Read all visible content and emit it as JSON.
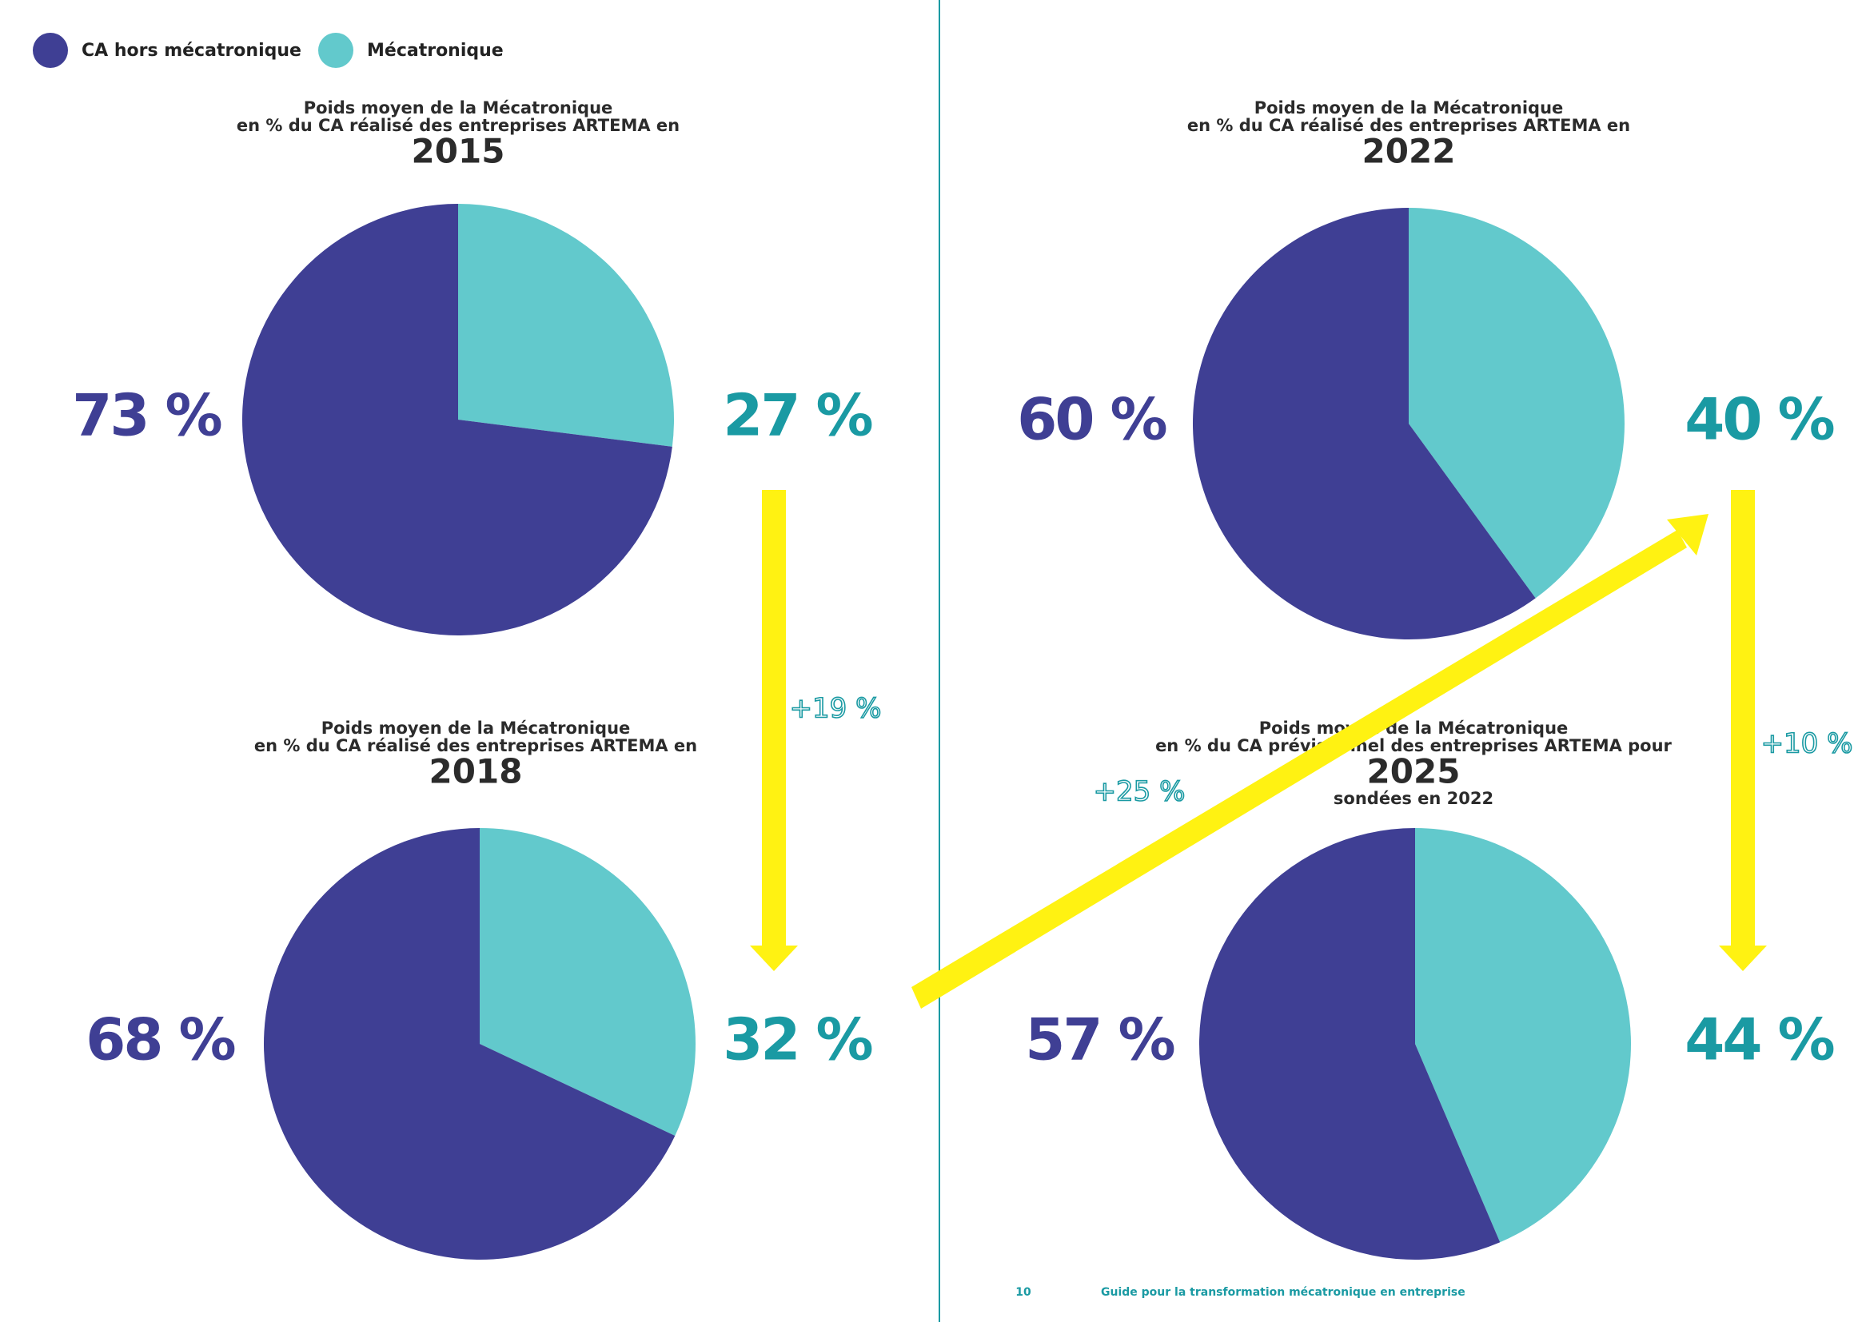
{
  "legend": {
    "items": [
      {
        "label": "CA hors mécatronique",
        "color": "#3f3f94"
      },
      {
        "label": "Mécatronique",
        "color": "#62c9cc"
      }
    ]
  },
  "chart_data": [
    {
      "type": "pie",
      "title": [
        "Poids moyen de la Mécatronique",
        "en % du CA réalisé des entreprises ARTEMA en",
        "2015"
      ],
      "values": [
        73,
        27
      ],
      "value_labels": [
        "73 %",
        "27 %"
      ],
      "colors": [
        "#3f3f94",
        "#62c9cc"
      ],
      "label_colors": [
        "#3f3f94",
        "#1a9aa3"
      ]
    },
    {
      "type": "pie",
      "title": [
        "Poids moyen de la Mécatronique",
        "en % du CA réalisé des entreprises ARTEMA en",
        "2018"
      ],
      "values": [
        68,
        32
      ],
      "value_labels": [
        "68 %",
        "32 %"
      ],
      "colors": [
        "#3f3f94",
        "#62c9cc"
      ],
      "label_colors": [
        "#3f3f94",
        "#1a9aa3"
      ]
    },
    {
      "type": "pie",
      "title": [
        "Poids moyen de la Mécatronique",
        "en % du CA réalisé des entreprises ARTEMA en",
        "2022"
      ],
      "values": [
        60,
        40
      ],
      "value_labels": [
        "60 %",
        "40 %"
      ],
      "colors": [
        "#3f3f94",
        "#62c9cc"
      ],
      "label_colors": [
        "#3f3f94",
        "#1a9aa3"
      ]
    },
    {
      "type": "pie",
      "title": [
        "Poids moyen de la Mécatronique",
        "en % du CA prévisionnel des entreprises ARTEMA pour",
        "2025",
        "sondées en 2022"
      ],
      "values": [
        57,
        44
      ],
      "value_labels": [
        "57 %",
        "44 %"
      ],
      "colors": [
        "#3f3f94",
        "#62c9cc"
      ],
      "label_colors": [
        "#3f3f94",
        "#1a9aa3"
      ]
    }
  ],
  "annotations": [
    "+19 %",
    "+25 %",
    "+10 %"
  ],
  "footer": {
    "page": "10",
    "text": "Guide pour la transformation mécatronique en entreprise"
  }
}
